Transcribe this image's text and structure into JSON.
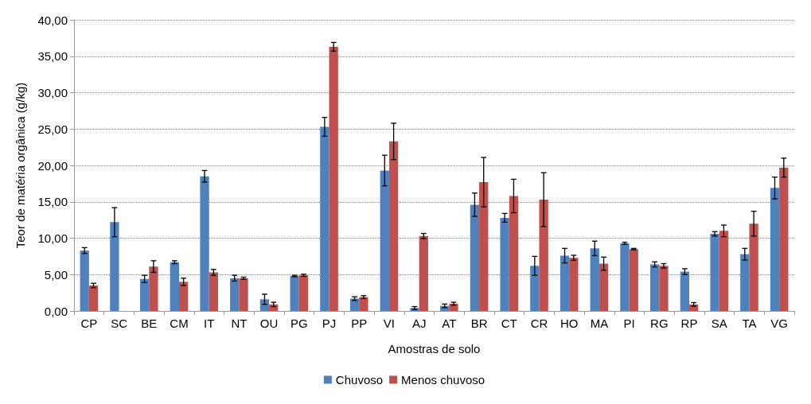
{
  "chart_data": {
    "type": "bar",
    "xlabel": "Amostras de solo",
    "ylabel": "Teor de matéria orgânica (g/kg)",
    "categories": [
      "CP",
      "SC",
      "BE",
      "CM",
      "IT",
      "NT",
      "OU",
      "PG",
      "PJ",
      "PP",
      "VI",
      "AJ",
      "AT",
      "BR",
      "CT",
      "CR",
      "HO",
      "MA",
      "PI",
      "RG",
      "RP",
      "SA",
      "TA",
      "VG"
    ],
    "series": [
      {
        "name": "Chuvoso",
        "color": "#4f81bd",
        "values": [
          8.3,
          12.2,
          4.4,
          6.7,
          18.5,
          4.5,
          1.6,
          4.8,
          25.3,
          1.7,
          19.3,
          0.4,
          0.7,
          14.6,
          12.8,
          6.2,
          7.6,
          8.6,
          9.3,
          6.4,
          5.4,
          10.6,
          7.8,
          16.9
        ],
        "errors": [
          0.4,
          2.0,
          0.5,
          0.2,
          0.8,
          0.4,
          0.7,
          0.1,
          1.3,
          0.25,
          2.1,
          0.2,
          0.25,
          1.6,
          0.6,
          1.3,
          1.0,
          1.0,
          0.15,
          0.35,
          0.4,
          0.3,
          0.8,
          1.5
        ]
      },
      {
        "name": "Menos chuvoso",
        "color": "#c0504d",
        "values": [
          3.5,
          null,
          6.1,
          4.0,
          5.3,
          4.5,
          0.9,
          4.9,
          36.3,
          1.9,
          23.3,
          10.3,
          1.0,
          17.7,
          15.8,
          15.3,
          7.3,
          6.5,
          8.5,
          6.2,
          0.9,
          11.0,
          12.0,
          19.7
        ],
        "errors": [
          0.3,
          null,
          0.8,
          0.5,
          0.4,
          0.15,
          0.3,
          0.15,
          0.6,
          0.2,
          2.5,
          0.35,
          0.2,
          3.4,
          2.3,
          3.7,
          0.35,
          0.9,
          0.1,
          0.3,
          0.25,
          0.8,
          1.7,
          1.3
        ]
      }
    ],
    "ylim": [
      0,
      40
    ],
    "yticks": [
      {
        "value": 0,
        "label": "0,00"
      },
      {
        "value": 5,
        "label": "5,00"
      },
      {
        "value": 10,
        "label": "10,00"
      },
      {
        "value": 15,
        "label": "15,00"
      },
      {
        "value": 20,
        "label": "20,00"
      },
      {
        "value": 25,
        "label": "25,00"
      },
      {
        "value": 30,
        "label": "30,00"
      },
      {
        "value": 35,
        "label": "35,00"
      },
      {
        "value": 40,
        "label": "40,00"
      }
    ],
    "grid": "y",
    "legend": "bottom"
  }
}
